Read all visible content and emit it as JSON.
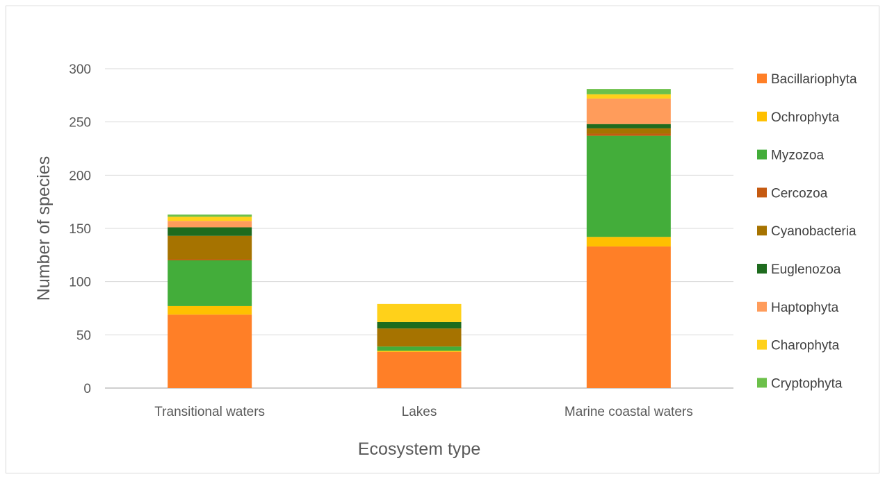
{
  "chart_data": {
    "type": "bar",
    "stacked": true,
    "title": "",
    "xlabel": "Ecosystem type",
    "ylabel": "Number of species",
    "ylim": [
      0,
      300
    ],
    "yticks": [
      "0",
      "50",
      "100",
      "150",
      "200",
      "250",
      "300"
    ],
    "grid": true,
    "legend_position": "right",
    "categories": [
      "Transitional waters",
      "Lakes",
      "Marine coastal waters"
    ],
    "series": [
      {
        "name": "Bacillariophyta",
        "color": "#FF7F27",
        "values": [
          69,
          34,
          133
        ]
      },
      {
        "name": "Ochrophyta",
        "color": "#FFC000",
        "values": [
          8,
          1,
          9
        ]
      },
      {
        "name": "Myzozoa",
        "color": "#43AD3A",
        "values": [
          43,
          4,
          95
        ]
      },
      {
        "name": "Cercozoa",
        "color": "#C55A11",
        "values": [
          1,
          0,
          2
        ]
      },
      {
        "name": "Cyanobacteria",
        "color": "#A67300",
        "values": [
          22,
          17,
          5
        ]
      },
      {
        "name": "Euglenozoa",
        "color": "#1E6B1E",
        "values": [
          8,
          6,
          4
        ]
      },
      {
        "name": "Haptophyta",
        "color": "#FF9C5B",
        "values": [
          6,
          0,
          24
        ]
      },
      {
        "name": "Charophyta",
        "color": "#FFD11A",
        "values": [
          4,
          17,
          4
        ]
      },
      {
        "name": "Cryptophyta",
        "color": "#6CC04A",
        "values": [
          2,
          0,
          5
        ]
      }
    ]
  }
}
